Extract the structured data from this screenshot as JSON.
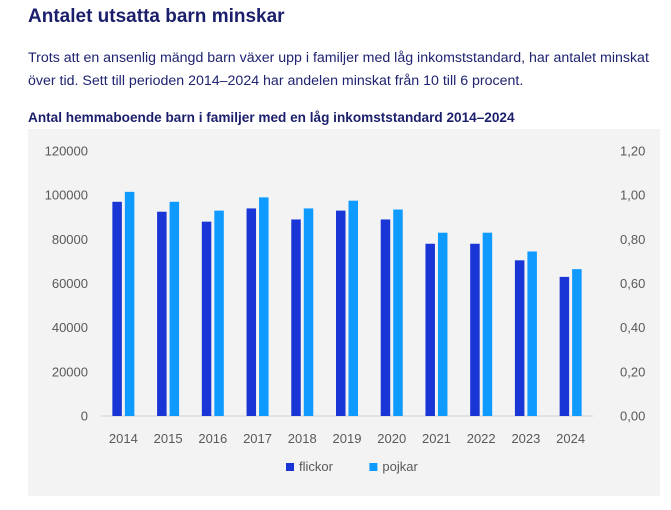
{
  "page": {
    "heading": "Antalet utsatta barn minskar",
    "intro": "Trots att en ansenlig mängd barn växer upp i familjer med låg inkomststandard, har antalet minskat över tid. Sett till perioden 2014–2024 har andelen minskat från 10 till 6 procent."
  },
  "chart_data": {
    "type": "bar",
    "title": "Antal hemmaboende barn i familjer med en låg inkomststandard 2014–2024",
    "categories": [
      "2014",
      "2015",
      "2016",
      "2017",
      "2018",
      "2019",
      "2020",
      "2021",
      "2022",
      "2023",
      "2024"
    ],
    "series": [
      {
        "name": "flickor",
        "color": "#1a35d6",
        "values": [
          97000,
          92500,
          88000,
          94000,
          89000,
          93000,
          89000,
          78000,
          78000,
          70500,
          63000
        ]
      },
      {
        "name": "pojkar",
        "color": "#0f9aff",
        "values": [
          101500,
          97000,
          93000,
          99000,
          94000,
          97500,
          93500,
          83000,
          83000,
          74500,
          66500
        ]
      }
    ],
    "ylim": [
      0,
      120000
    ],
    "yticks": [
      "0",
      "20000",
      "40000",
      "60000",
      "80000",
      "100000",
      "120000"
    ],
    "y2lim": [
      0,
      1.2
    ],
    "y2ticks": [
      "0,00",
      "0,20",
      "0,40",
      "0,60",
      "0,80",
      "1,00",
      "1,20"
    ],
    "legend_position": "bottom",
    "grid": false
  }
}
